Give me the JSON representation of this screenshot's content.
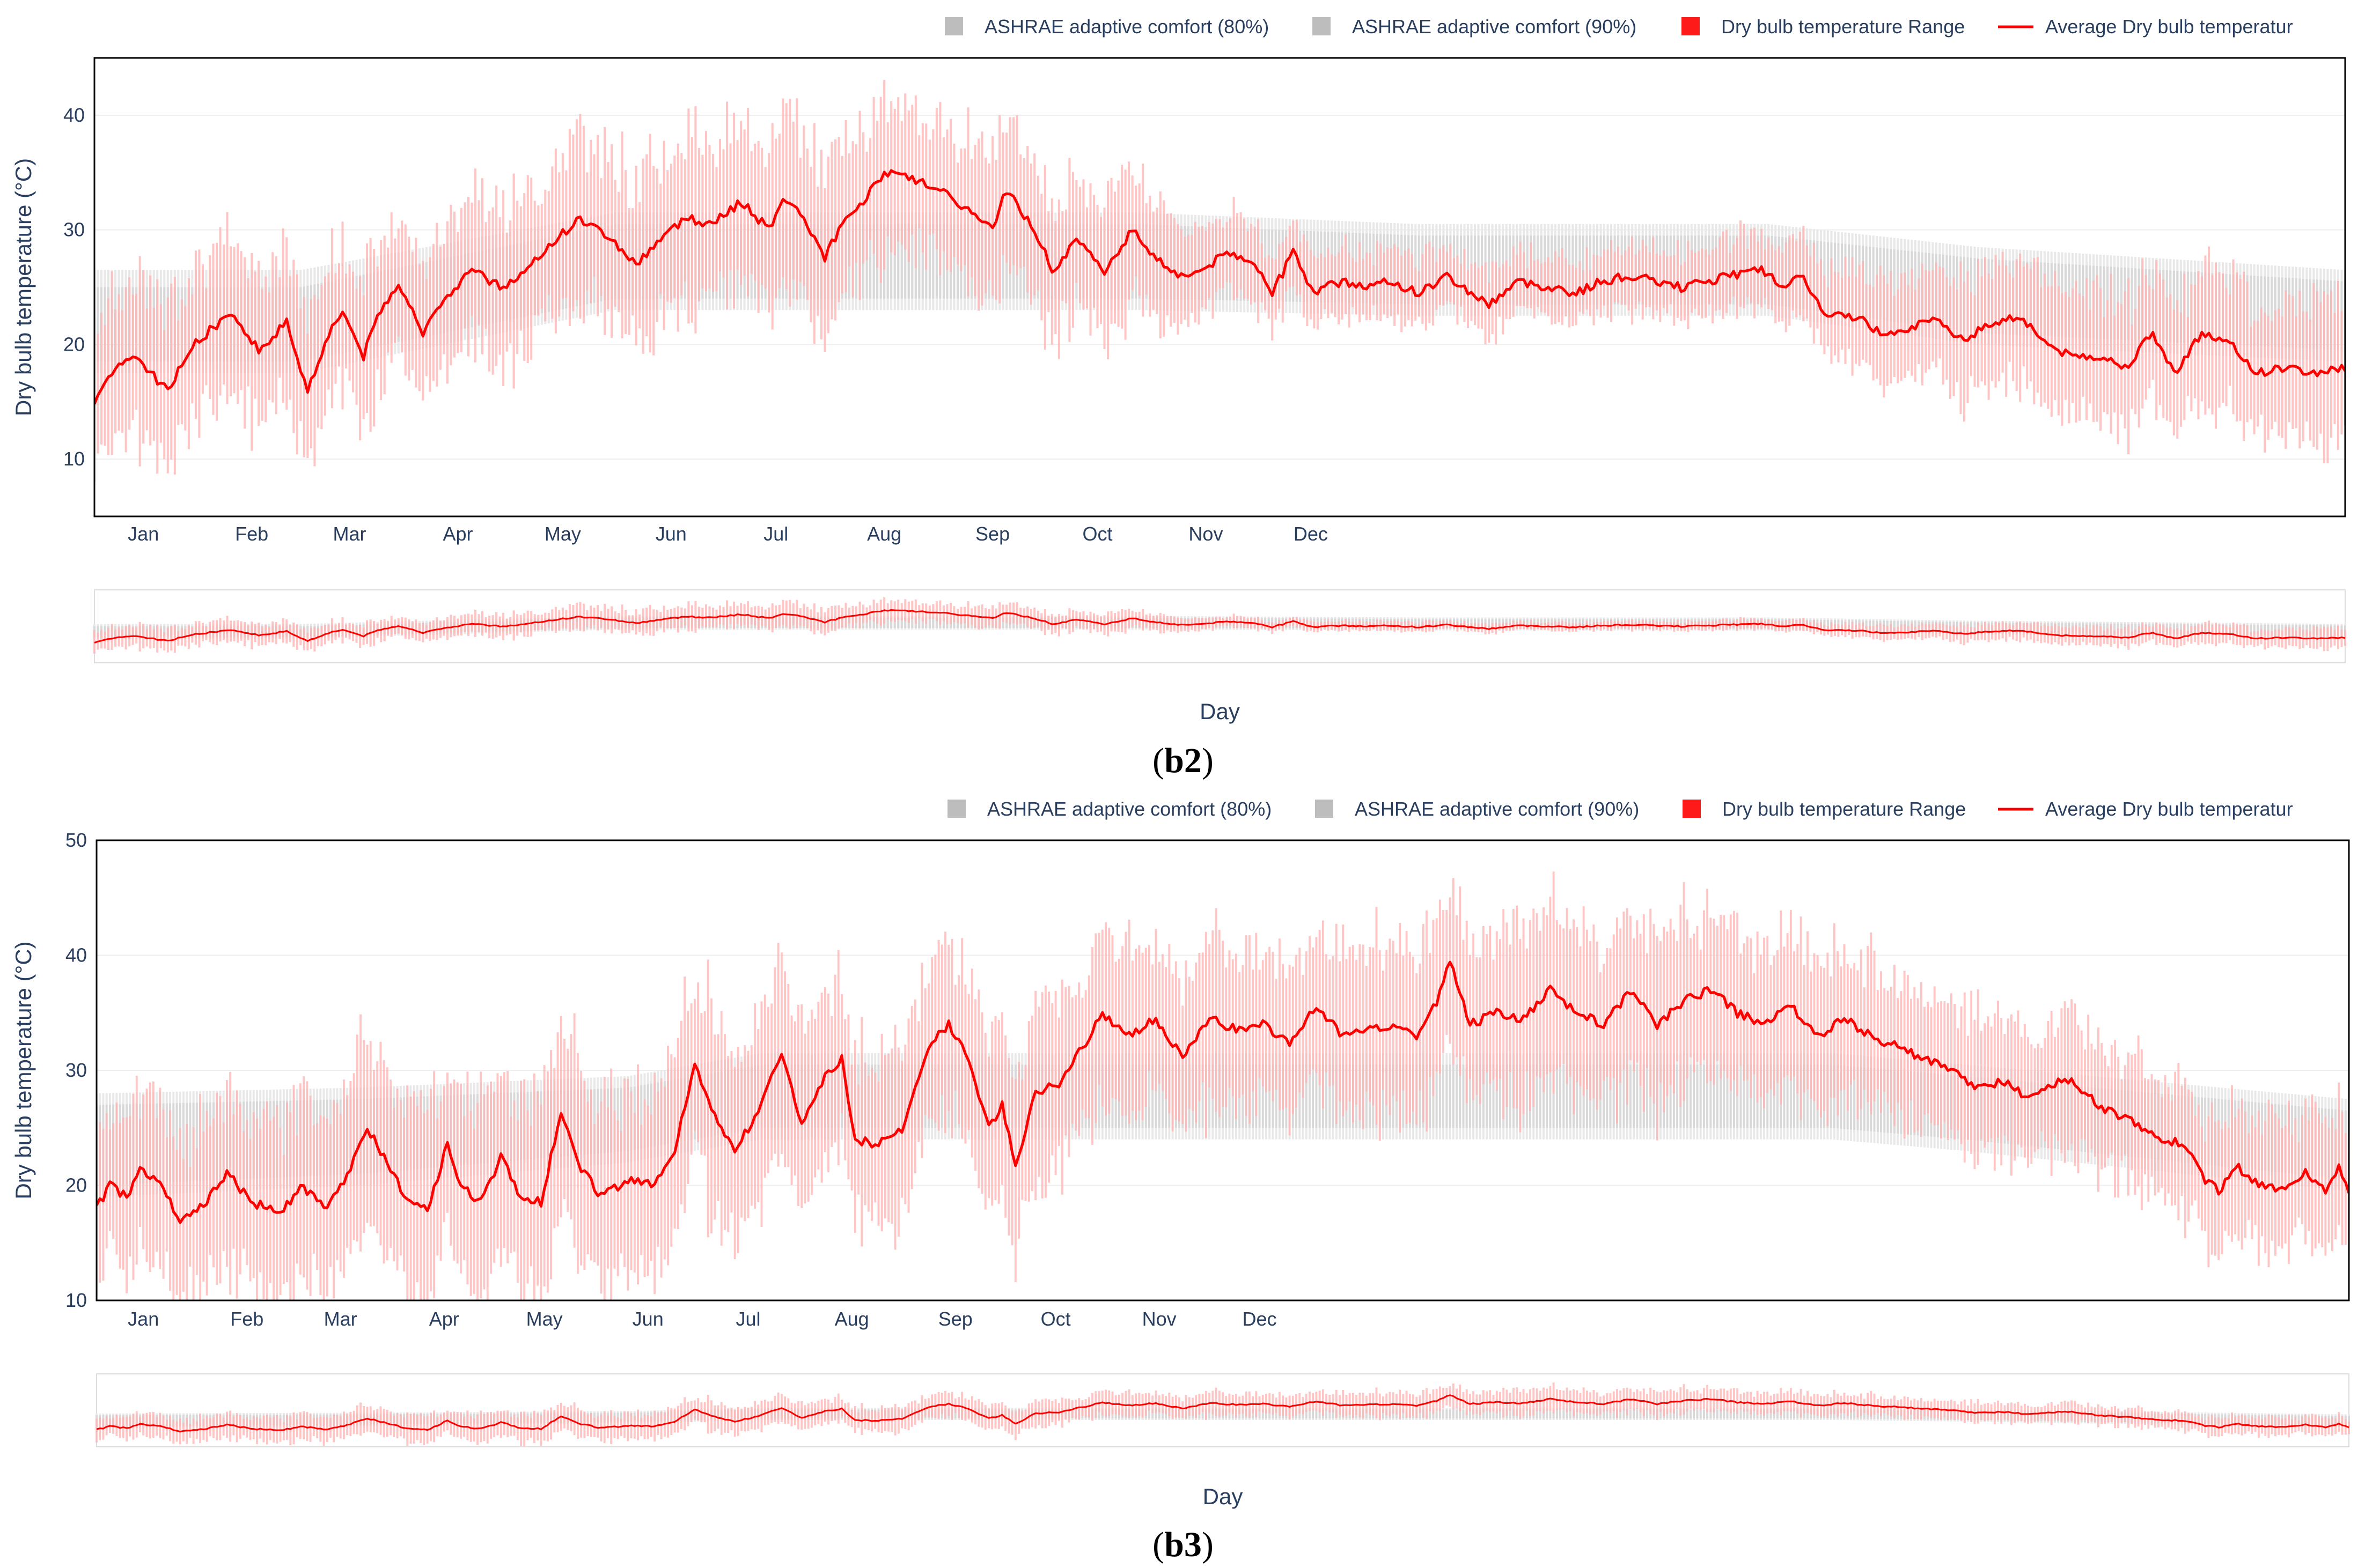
{
  "chart_data": [
    {
      "id": "b2",
      "type": "line",
      "caption_bold": "b2",
      "legend": [
        "ASHRAE adaptive comfort (80%)",
        "ASHRAE adaptive comfort (90%)",
        "Dry bulb temperature Range",
        "Average Dry bulb temperatur"
      ],
      "xlabel": "Day",
      "ylabel": "Dry bulb temperature (°C)",
      "ylim": [
        5,
        45
      ],
      "yticks": [
        10,
        20,
        30,
        40
      ],
      "months": [
        "Jan",
        "Feb",
        "Mar",
        "Apr",
        "May",
        "Jun",
        "Jul",
        "Aug",
        "Sep",
        "Oct",
        "Nov",
        "Dec"
      ],
      "month_days": [
        1,
        32,
        60,
        91,
        121,
        152,
        182,
        213,
        244,
        274,
        305,
        335
      ],
      "avg_keypoints": [
        [
          1,
          14.5
        ],
        [
          5,
          17.5
        ],
        [
          12,
          19
        ],
        [
          22,
          16
        ],
        [
          28,
          19.5
        ],
        [
          35,
          21.5
        ],
        [
          40,
          22.5
        ],
        [
          48,
          19.5
        ],
        [
          56,
          22
        ],
        [
          62,
          16
        ],
        [
          68,
          21
        ],
        [
          72,
          23
        ],
        [
          78,
          19
        ],
        [
          82,
          22.5
        ],
        [
          88,
          25.5
        ],
        [
          95,
          21
        ],
        [
          102,
          24
        ],
        [
          108,
          26.5
        ],
        [
          118,
          25
        ],
        [
          125,
          26.5
        ],
        [
          132,
          29
        ],
        [
          140,
          31
        ],
        [
          148,
          29.5
        ],
        [
          156,
          27
        ],
        [
          162,
          29
        ],
        [
          170,
          31
        ],
        [
          178,
          30.5
        ],
        [
          186,
          32.5
        ],
        [
          194,
          30
        ],
        [
          198,
          33
        ],
        [
          205,
          30.5
        ],
        [
          210,
          27.5
        ],
        [
          214,
          30
        ],
        [
          222,
          33
        ],
        [
          228,
          35
        ],
        [
          240,
          34
        ],
        [
          250,
          32
        ],
        [
          258,
          30
        ],
        [
          262,
          33.5
        ],
        [
          270,
          30
        ],
        [
          275,
          26.5
        ],
        [
          282,
          29
        ],
        [
          290,
          26.5
        ],
        [
          298,
          30
        ],
        [
          305,
          27.5
        ],
        [
          312,
          26
        ],
        [
          318,
          26.5
        ],
        [
          325,
          28
        ],
        [
          332,
          27.5
        ],
        [
          338,
          24.5
        ],
        [
          344,
          28
        ],
        [
          350,
          24.5
        ],
        [
          358,
          25.5
        ],
        [
          365,
          25
        ],
        [
          372,
          25.5
        ],
        [
          380,
          24.5
        ],
        [
          388,
          26
        ],
        [
          395,
          24.5
        ],
        [
          400,
          23.5
        ],
        [
          408,
          25.5
        ],
        [
          418,
          25
        ],
        [
          425,
          24.5
        ],
        [
          432,
          25.5
        ],
        [
          440,
          26
        ],
        [
          448,
          25.5
        ],
        [
          455,
          25
        ],
        [
          462,
          25.5
        ],
        [
          470,
          26
        ],
        [
          478,
          26.5
        ],
        [
          485,
          25
        ],
        [
          490,
          26
        ],
        [
          496,
          22.5
        ],
        [
          505,
          22.5
        ],
        [
          512,
          21
        ],
        [
          520,
          21.5
        ],
        [
          528,
          22
        ],
        [
          536,
          20.5
        ],
        [
          545,
          22
        ],
        [
          552,
          22.5
        ],
        [
          560,
          20
        ],
        [
          566,
          19
        ],
        [
          575,
          19
        ],
        [
          582,
          18
        ],
        [
          590,
          21
        ],
        [
          596,
          17.5
        ],
        [
          604,
          21
        ],
        [
          612,
          20
        ],
        [
          620,
          17.5
        ],
        [
          628,
          18
        ],
        [
          636,
          17.5
        ],
        [
          645,
          18
        ]
      ],
      "band80_low_keypoints": [
        [
          1,
          18.5
        ],
        [
          60,
          18.5
        ],
        [
          150,
          24
        ],
        [
          300,
          24
        ],
        [
          380,
          23.5
        ],
        [
          480,
          23.5
        ],
        [
          540,
          21
        ],
        [
          645,
          19.5
        ]
      ],
      "band80_high_keypoints": [
        [
          1,
          25
        ],
        [
          60,
          25
        ],
        [
          150,
          30.5
        ],
        [
          300,
          30.5
        ],
        [
          380,
          29.5
        ],
        [
          480,
          29.5
        ],
        [
          540,
          27.5
        ],
        [
          645,
          25.5
        ]
      ],
      "band90_low_keypoints": [
        [
          1,
          17.5
        ],
        [
          60,
          17.5
        ],
        [
          150,
          23
        ],
        [
          300,
          23
        ],
        [
          380,
          22.5
        ],
        [
          480,
          22.5
        ],
        [
          540,
          20
        ],
        [
          645,
          18.5
        ]
      ],
      "band90_high_keypoints": [
        [
          1,
          26.5
        ],
        [
          60,
          26.5
        ],
        [
          150,
          31.5
        ],
        [
          300,
          31.5
        ],
        [
          380,
          30.5
        ],
        [
          480,
          30.5
        ],
        [
          540,
          28.5
        ],
        [
          645,
          26.5
        ]
      ],
      "range_half_width_keypoints": [
        [
          1,
          6.5
        ],
        [
          90,
          6
        ],
        [
          150,
          7
        ],
        [
          300,
          5.5
        ],
        [
          330,
          3
        ],
        [
          420,
          2.5
        ],
        [
          480,
          3
        ],
        [
          540,
          5
        ],
        [
          645,
          6
        ]
      ]
    },
    {
      "id": "b3",
      "type": "line",
      "caption_bold": "b3",
      "legend": [
        "ASHRAE adaptive comfort (80%)",
        "ASHRAE adaptive comfort (90%)",
        "Dry bulb temperature Range",
        "Average Dry bulb temperatur"
      ],
      "xlabel": "Day",
      "ylabel": "Dry bulb temperature (°C)",
      "ylim": [
        10,
        50
      ],
      "yticks": [
        10,
        20,
        30,
        40,
        50
      ],
      "months": [
        "Jan",
        "Feb",
        "Mar",
        "Apr",
        "May",
        "Jun",
        "Jul",
        "Aug",
        "Sep",
        "Oct",
        "Nov",
        "Dec"
      ],
      "month_days": [
        1,
        32,
        60,
        91,
        121,
        152,
        182,
        213,
        244,
        274,
        305,
        335
      ],
      "avg_keypoints": [
        [
          1,
          18
        ],
        [
          5,
          20
        ],
        [
          10,
          19
        ],
        [
          14,
          21.5
        ],
        [
          20,
          20
        ],
        [
          26,
          17
        ],
        [
          32,
          18
        ],
        [
          40,
          21
        ],
        [
          48,
          18.5
        ],
        [
          56,
          17.5
        ],
        [
          62,
          20
        ],
        [
          70,
          18
        ],
        [
          76,
          21
        ],
        [
          82,
          25
        ],
        [
          88,
          22
        ],
        [
          94,
          18.5
        ],
        [
          100,
          18
        ],
        [
          106,
          23.5
        ],
        [
          110,
          20
        ],
        [
          116,
          18.5
        ],
        [
          122,
          22.5
        ],
        [
          128,
          19
        ],
        [
          134,
          18.5
        ],
        [
          140,
          26.5
        ],
        [
          145,
          22
        ],
        [
          152,
          19
        ],
        [
          160,
          20.5
        ],
        [
          168,
          20
        ],
        [
          174,
          23
        ],
        [
          180,
          30.5
        ],
        [
          186,
          26
        ],
        [
          192,
          23
        ],
        [
          200,
          27
        ],
        [
          206,
          31.5
        ],
        [
          212,
          25.5
        ],
        [
          218,
          29
        ],
        [
          224,
          31
        ],
        [
          228,
          24
        ],
        [
          235,
          23.5
        ],
        [
          242,
          25
        ],
        [
          250,
          32
        ],
        [
          256,
          34
        ],
        [
          262,
          31
        ],
        [
          268,
          25
        ],
        [
          272,
          27
        ],
        [
          276,
          21.5
        ],
        [
          282,
          28
        ],
        [
          290,
          29
        ],
        [
          296,
          32
        ],
        [
          302,
          35
        ],
        [
          310,
          33
        ],
        [
          318,
          34.5
        ],
        [
          326,
          31
        ],
        [
          334,
          34.5
        ],
        [
          342,
          33.5
        ],
        [
          350,
          34
        ],
        [
          358,
          32.5
        ],
        [
          366,
          35.5
        ],
        [
          374,
          33
        ],
        [
          382,
          33.5
        ],
        [
          390,
          34
        ],
        [
          396,
          33
        ],
        [
          402,
          36
        ],
        [
          406,
          39.5
        ],
        [
          412,
          34
        ],
        [
          420,
          35
        ],
        [
          428,
          34.5
        ],
        [
          436,
          37
        ],
        [
          444,
          35
        ],
        [
          452,
          34
        ],
        [
          460,
          37
        ],
        [
          468,
          34
        ],
        [
          476,
          36
        ],
        [
          484,
          37
        ],
        [
          492,
          35
        ],
        [
          500,
          34
        ],
        [
          508,
          35.5
        ],
        [
          516,
          33
        ],
        [
          524,
          34.5
        ],
        [
          532,
          33
        ],
        [
          540,
          32
        ],
        [
          548,
          31
        ],
        [
          556,
          30
        ],
        [
          564,
          28.5
        ],
        [
          572,
          29
        ],
        [
          580,
          27.5
        ],
        [
          590,
          29.5
        ],
        [
          600,
          27
        ],
        [
          610,
          25.5
        ],
        [
          620,
          24
        ],
        [
          626,
          23.5
        ],
        [
          632,
          20.5
        ],
        [
          636,
          19.5
        ],
        [
          642,
          21.5
        ],
        [
          648,
          20
        ],
        [
          655,
          19.5
        ],
        [
          662,
          21
        ],
        [
          668,
          19.5
        ],
        [
          672,
          21.5
        ],
        [
          675,
          19.5
        ]
      ],
      "band80_low_keypoints": [
        [
          1,
          20
        ],
        [
          80,
          21
        ],
        [
          160,
          23
        ],
        [
          200,
          25
        ],
        [
          520,
          25
        ],
        [
          560,
          24
        ],
        [
          675,
          20.5
        ]
      ],
      "band80_high_keypoints": [
        [
          1,
          27
        ],
        [
          80,
          27.5
        ],
        [
          160,
          28.5
        ],
        [
          200,
          30.5
        ],
        [
          520,
          30.5
        ],
        [
          560,
          29.5
        ],
        [
          675,
          26.5
        ]
      ],
      "band90_low_keypoints": [
        [
          1,
          19
        ],
        [
          80,
          20
        ],
        [
          160,
          22
        ],
        [
          200,
          24
        ],
        [
          520,
          24
        ],
        [
          560,
          23
        ],
        [
          675,
          19.5
        ]
      ],
      "band90_high_keypoints": [
        [
          1,
          28
        ],
        [
          80,
          28.5
        ],
        [
          160,
          29.5
        ],
        [
          200,
          31.5
        ],
        [
          520,
          31.5
        ],
        [
          560,
          30.5
        ],
        [
          675,
          27.5
        ]
      ],
      "range_half_width_keypoints": [
        [
          1,
          6
        ],
        [
          90,
          8
        ],
        [
          180,
          8
        ],
        [
          300,
          6.5
        ],
        [
          450,
          7
        ],
        [
          560,
          5.5
        ],
        [
          675,
          5
        ]
      ]
    }
  ],
  "colors": {
    "comfort80": "#e8e8e8",
    "comfort90": "#d8d8d8",
    "legend_gray": "#bdbdbd",
    "range": "#ffb3b3",
    "range_legend": "#ff1a1a",
    "average": "#ff0000",
    "axis_text": "#2a3f5f",
    "grid": "#eeeeee",
    "frame": "#000000"
  }
}
